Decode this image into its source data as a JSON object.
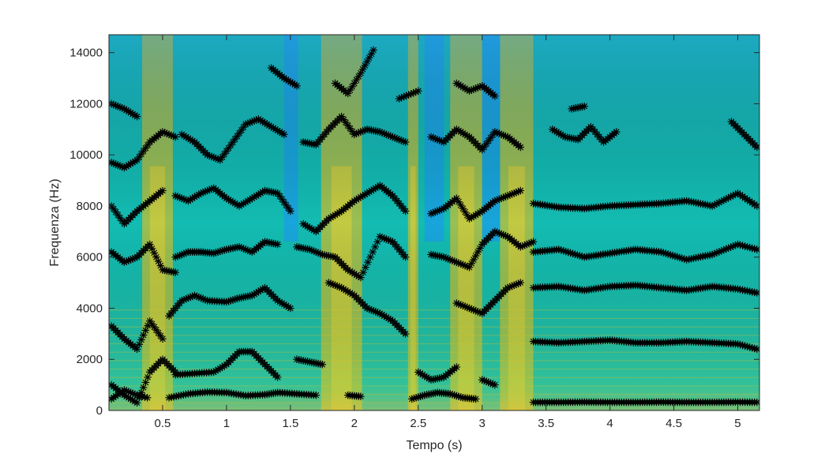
{
  "chart_data": {
    "type": "scatter",
    "subtype": "spectrogram-with-formant-tracks",
    "title": "",
    "xlabel": "Tempo (s)",
    "ylabel": "Frequenza (Hz)",
    "xlim": [
      0.08,
      5.17
    ],
    "ylim": [
      0,
      14700
    ],
    "xticks": [
      0.5,
      1,
      1.5,
      2,
      2.5,
      3,
      3.5,
      4,
      4.5,
      5
    ],
    "xtick_labels": [
      "0.5",
      "1",
      "1.5",
      "2",
      "2.5",
      "3",
      "3.5",
      "4",
      "4.5",
      "5"
    ],
    "yticks": [
      0,
      2000,
      4000,
      6000,
      8000,
      10000,
      12000,
      14000
    ],
    "ytick_labels": [
      "0",
      "2000",
      "4000",
      "6000",
      "8000",
      "10000",
      "12000",
      "14000"
    ],
    "grid": false,
    "background": {
      "kind": "spectrogram",
      "colormap": [
        "#3e26a8",
        "#1b9ee8",
        "#13bcb2",
        "#6bcb62",
        "#cfc12d",
        "#f3d52e"
      ],
      "high_energy_time_bands_s": [
        [
          0.34,
          0.58
        ],
        [
          1.74,
          2.06
        ],
        [
          2.42,
          2.5
        ],
        [
          2.75,
          3.0
        ],
        [
          3.14,
          3.4
        ]
      ],
      "low_energy_time_bands_s": [
        [
          1.45,
          1.56
        ],
        [
          2.55,
          2.7
        ],
        [
          3.0,
          3.14
        ]
      ]
    },
    "marker": {
      "symbol": "asterisk",
      "color": "#000000"
    },
    "series": [
      {
        "segments": [
          {
            "x": [
              0.1,
              0.2,
              0.3,
              0.38
            ],
            "y": [
              450,
              800,
              600,
              500
            ]
          },
          {
            "x": [
              0.55,
              0.7,
              0.85,
              1.0,
              1.15,
              1.3,
              1.4,
              1.55,
              1.7
            ],
            "y": [
              500,
              650,
              720,
              700,
              580,
              620,
              700,
              650,
              600
            ]
          },
          {
            "x": [
              1.95,
              2.05
            ],
            "y": [
              600,
              550
            ]
          },
          {
            "x": [
              2.45,
              2.55,
              2.65,
              2.75,
              2.85,
              2.95
            ],
            "y": [
              450,
              600,
              700,
              650,
              500,
              450
            ]
          },
          {
            "x": [
              3.4,
              3.6,
              3.8,
              4.0,
              4.2,
              4.4,
              4.6,
              4.8,
              5.0,
              5.15
            ],
            "y": [
              320,
              320,
              330,
              320,
              320,
              330,
              320,
              320,
              330,
              320
            ]
          }
        ]
      },
      {
        "segments": [
          {
            "x": [
              0.1,
              0.2,
              0.3,
              0.4,
              0.5,
              0.6
            ],
            "y": [
              1000,
              600,
              300,
              1500,
              2000,
              1500
            ]
          },
          {
            "x": [
              0.6,
              0.75,
              0.9,
              1.0,
              1.1,
              1.2,
              1.3,
              1.4
            ],
            "y": [
              1400,
              1450,
              1500,
              1800,
              2300,
              2300,
              1800,
              1300
            ]
          },
          {
            "x": [
              1.55,
              1.65,
              1.75
            ],
            "y": [
              2000,
              1900,
              1800
            ]
          },
          {
            "x": [
              2.5,
              2.6,
              2.7,
              2.8
            ],
            "y": [
              1500,
              1200,
              1300,
              1700
            ]
          },
          {
            "x": [
              3.0,
              3.1
            ],
            "y": [
              1200,
              1000
            ]
          },
          {
            "x": [
              3.4,
              3.6,
              3.8,
              4.0,
              4.2,
              4.4,
              4.6,
              4.8,
              5.0,
              5.15
            ],
            "y": [
              2700,
              2650,
              2700,
              2750,
              2650,
              2650,
              2700,
              2650,
              2600,
              2400
            ]
          }
        ]
      },
      {
        "segments": [
          {
            "x": [
              0.1,
              0.2,
              0.3,
              0.4,
              0.5
            ],
            "y": [
              3300,
              2800,
              2400,
              3500,
              2800
            ]
          },
          {
            "x": [
              0.55,
              0.65,
              0.75,
              0.85,
              1.0,
              1.1,
              1.2,
              1.3,
              1.4,
              1.5
            ],
            "y": [
              3700,
              4300,
              4500,
              4300,
              4250,
              4400,
              4500,
              4800,
              4300,
              4000
            ]
          },
          {
            "x": [
              1.8,
              1.9,
              2.0,
              2.1,
              2.2,
              2.3,
              2.4
            ],
            "y": [
              5000,
              4800,
              4500,
              4000,
              3800,
              3500,
              3000
            ]
          },
          {
            "x": [
              2.8,
              2.9,
              3.0,
              3.1,
              3.2,
              3.3
            ],
            "y": [
              4200,
              4000,
              3800,
              4300,
              4800,
              5000
            ]
          },
          {
            "x": [
              3.4,
              3.6,
              3.8,
              4.0,
              4.2,
              4.4,
              4.6,
              4.8,
              5.0,
              5.15
            ],
            "y": [
              4800,
              4850,
              4700,
              4850,
              4900,
              4800,
              4700,
              4850,
              4750,
              4600
            ]
          }
        ]
      },
      {
        "segments": [
          {
            "x": [
              0.1,
              0.2,
              0.3,
              0.4,
              0.5,
              0.6
            ],
            "y": [
              6200,
              5800,
              6000,
              6500,
              5500,
              5400
            ]
          },
          {
            "x": [
              0.6,
              0.7,
              0.8,
              0.9,
              1.0,
              1.1,
              1.2,
              1.3,
              1.4
            ],
            "y": [
              6000,
              6200,
              6200,
              6150,
              6300,
              6400,
              6200,
              6600,
              6500
            ]
          },
          {
            "x": [
              1.55,
              1.65,
              1.75,
              1.85,
              1.95,
              2.05,
              2.2,
              2.3,
              2.4
            ],
            "y": [
              6400,
              6300,
              6100,
              6000,
              5500,
              5200,
              6800,
              6600,
              6000
            ]
          },
          {
            "x": [
              2.6,
              2.7,
              2.8,
              2.9,
              3.0,
              3.1,
              3.2,
              3.3,
              3.4
            ],
            "y": [
              6100,
              6000,
              5800,
              5600,
              6500,
              7000,
              6800,
              6400,
              6600
            ]
          },
          {
            "x": [
              3.4,
              3.6,
              3.8,
              4.0,
              4.2,
              4.4,
              4.6,
              4.8,
              5.0,
              5.15
            ],
            "y": [
              6200,
              6300,
              6000,
              6150,
              6300,
              6200,
              5900,
              6100,
              6500,
              6300
            ]
          }
        ]
      },
      {
        "segments": [
          {
            "x": [
              0.1,
              0.2,
              0.3,
              0.4,
              0.5
            ],
            "y": [
              8000,
              7300,
              7800,
              8200,
              8600
            ]
          },
          {
            "x": [
              0.6,
              0.7,
              0.8,
              0.9,
              1.0,
              1.1,
              1.2,
              1.3,
              1.4,
              1.5
            ],
            "y": [
              8400,
              8200,
              8500,
              8700,
              8300,
              8000,
              8300,
              8600,
              8500,
              7800
            ]
          },
          {
            "x": [
              1.6,
              1.7,
              1.8,
              1.9,
              2.0,
              2.1,
              2.2,
              2.3,
              2.4
            ],
            "y": [
              7300,
              7000,
              7500,
              7800,
              8200,
              8500,
              8800,
              8400,
              7800
            ]
          },
          {
            "x": [
              2.6,
              2.7,
              2.8,
              2.9,
              3.0,
              3.1,
              3.2,
              3.3
            ],
            "y": [
              7700,
              7900,
              8300,
              7500,
              7800,
              8200,
              8400,
              8600
            ]
          },
          {
            "x": [
              3.4,
              3.6,
              3.8,
              4.0,
              4.2,
              4.4,
              4.6,
              4.8,
              5.0,
              5.15
            ],
            "y": [
              8100,
              7950,
              7900,
              8000,
              8050,
              8100,
              8200,
              8000,
              8500,
              8000
            ]
          }
        ]
      },
      {
        "segments": [
          {
            "x": [
              0.1,
              0.2,
              0.3,
              0.4,
              0.5,
              0.6
            ],
            "y": [
              9700,
              9500,
              9800,
              10500,
              10900,
              10700
            ]
          },
          {
            "x": [
              0.65,
              0.75,
              0.85,
              0.95,
              1.05,
              1.15,
              1.25,
              1.35,
              1.45
            ],
            "y": [
              10800,
              10500,
              10000,
              9800,
              10500,
              11200,
              11400,
              11100,
              10800
            ]
          },
          {
            "x": [
              1.6,
              1.7,
              1.8,
              1.9,
              2.0,
              2.1,
              2.2,
              2.3,
              2.4
            ],
            "y": [
              10500,
              10400,
              11000,
              11500,
              10800,
              11000,
              10900,
              10700,
              10500
            ]
          },
          {
            "x": [
              2.6,
              2.7,
              2.8,
              2.9,
              3.0,
              3.1,
              3.2,
              3.3
            ],
            "y": [
              10700,
              10500,
              11000,
              10700,
              10200,
              10900,
              10700,
              10300
            ]
          },
          {
            "x": [
              3.55,
              3.65,
              3.75,
              3.85,
              3.95,
              4.05
            ],
            "y": [
              11000,
              10700,
              10600,
              11100,
              10500,
              10900
            ]
          },
          {
            "x": [
              4.95,
              5.05,
              5.15
            ],
            "y": [
              11300,
              10800,
              10300
            ]
          }
        ]
      },
      {
        "segments": [
          {
            "x": [
              0.1,
              0.2,
              0.3
            ],
            "y": [
              12000,
              11800,
              11500
            ]
          },
          {
            "x": [
              1.35,
              1.45,
              1.55
            ],
            "y": [
              13400,
              13000,
              12700
            ]
          },
          {
            "x": [
              1.85,
              1.95,
              2.05,
              2.15
            ],
            "y": [
              12800,
              12400,
              13200,
              14100
            ]
          },
          {
            "x": [
              2.35,
              2.5
            ],
            "y": [
              12200,
              12500
            ]
          },
          {
            "x": [
              2.8,
              2.9,
              3.0,
              3.1
            ],
            "y": [
              12800,
              12500,
              12700,
              12300
            ]
          },
          {
            "x": [
              3.7,
              3.8
            ],
            "y": [
              11800,
              11900
            ]
          }
        ]
      }
    ]
  }
}
